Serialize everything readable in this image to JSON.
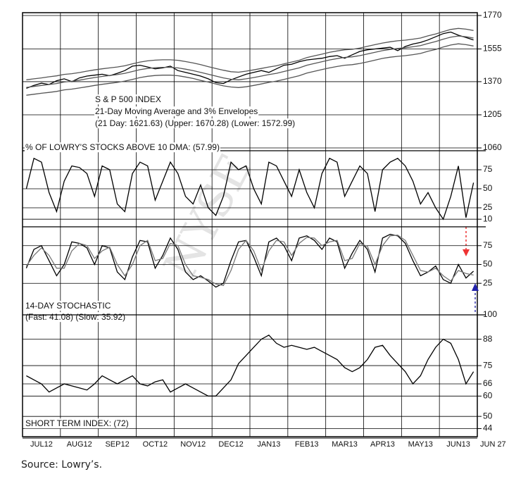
{
  "chart_data": [
    {
      "type": "line",
      "log": true,
      "title": "S & P 500 INDEX",
      "subtitle": "21-Day Moving Average and 3% Envelopes",
      "annotation": "(21 Day: 1621.63) (Upper: 1670.28) (Lower: 1572.99)",
      "ylim": [
        1060,
        1770
      ],
      "yticks": [
        1770,
        1555,
        1370,
        1205,
        1060
      ],
      "grid": true,
      "series": [
        {
          "name": "S&P 500",
          "color": "#000000",
          "values": [
            1335,
            1350,
            1362,
            1355,
            1375,
            1385,
            1370,
            1390,
            1400,
            1405,
            1410,
            1402,
            1415,
            1430,
            1455,
            1460,
            1450,
            1440,
            1445,
            1455,
            1430,
            1420,
            1410,
            1400,
            1385,
            1365,
            1360,
            1380,
            1395,
            1410,
            1420,
            1430,
            1420,
            1440,
            1460,
            1465,
            1480,
            1490,
            1495,
            1500,
            1510,
            1515,
            1500,
            1520,
            1540,
            1550,
            1555,
            1560,
            1565,
            1545,
            1570,
            1585,
            1595,
            1610,
            1630,
            1650,
            1660,
            1640,
            1625,
            1610
          ]
        },
        {
          "name": "21 Day",
          "color": "#555555",
          "values": [
            1340,
            1345,
            1350,
            1355,
            1360,
            1368,
            1372,
            1378,
            1385,
            1392,
            1398,
            1403,
            1408,
            1415,
            1425,
            1435,
            1442,
            1446,
            1448,
            1448,
            1445,
            1438,
            1430,
            1420,
            1410,
            1400,
            1390,
            1383,
            1380,
            1385,
            1392,
            1400,
            1408,
            1415,
            1425,
            1435,
            1445,
            1460,
            1470,
            1480,
            1490,
            1498,
            1505,
            1508,
            1515,
            1525,
            1535,
            1545,
            1552,
            1558,
            1562,
            1568,
            1575,
            1588,
            1600,
            1615,
            1628,
            1635,
            1630,
            1622
          ]
        },
        {
          "name": "Upper",
          "color": "#555555",
          "values": [
            1380,
            1385,
            1390,
            1396,
            1401,
            1409,
            1413,
            1419,
            1427,
            1434,
            1440,
            1445,
            1450,
            1457,
            1468,
            1478,
            1485,
            1489,
            1491,
            1491,
            1488,
            1481,
            1473,
            1463,
            1452,
            1442,
            1432,
            1424,
            1421,
            1427,
            1434,
            1442,
            1450,
            1457,
            1468,
            1478,
            1488,
            1504,
            1514,
            1524,
            1535,
            1543,
            1550,
            1553,
            1560,
            1571,
            1581,
            1591,
            1599,
            1605,
            1609,
            1615,
            1622,
            1636,
            1648,
            1663,
            1677,
            1684,
            1679,
            1670
          ]
        },
        {
          "name": "Lower",
          "color": "#555555",
          "values": [
            1300,
            1305,
            1310,
            1314,
            1319,
            1327,
            1331,
            1337,
            1343,
            1350,
            1356,
            1361,
            1366,
            1373,
            1382,
            1392,
            1399,
            1403,
            1405,
            1405,
            1402,
            1395,
            1387,
            1377,
            1368,
            1358,
            1348,
            1342,
            1339,
            1343,
            1350,
            1358,
            1366,
            1373,
            1382,
            1392,
            1402,
            1416,
            1426,
            1436,
            1445,
            1453,
            1460,
            1463,
            1470,
            1479,
            1489,
            1499,
            1506,
            1511,
            1515,
            1521,
            1528,
            1541,
            1552,
            1567,
            1579,
            1586,
            1581,
            1573
          ]
        }
      ]
    },
    {
      "type": "line",
      "title": "% OF LOWRY'S STOCKS ABOVE 10 DMA: (57.99)",
      "ylim": [
        0,
        100
      ],
      "yticks": [
        75,
        50,
        25,
        10
      ],
      "grid": true,
      "series": [
        {
          "name": "% above 10 DMA",
          "color": "#000000",
          "values": [
            50,
            90,
            85,
            45,
            20,
            60,
            80,
            78,
            70,
            40,
            80,
            75,
            30,
            20,
            70,
            85,
            80,
            35,
            60,
            85,
            70,
            40,
            30,
            55,
            25,
            15,
            40,
            85,
            75,
            80,
            50,
            30,
            85,
            80,
            60,
            40,
            75,
            45,
            25,
            70,
            90,
            85,
            40,
            60,
            80,
            70,
            20,
            75,
            85,
            90,
            80,
            60,
            30,
            45,
            25,
            10,
            40,
            80,
            12,
            57.99
          ]
        }
      ]
    },
    {
      "type": "line",
      "title": "14-DAY STOCHASTIC",
      "subtitle": "(Fast: 41.08) (Slow: 35.92)",
      "ylim": [
        -15,
        100
      ],
      "yticks": [
        75,
        50,
        25
      ],
      "grid": true,
      "series": [
        {
          "name": "Fast",
          "color": "#000000",
          "values": [
            45,
            70,
            75,
            55,
            35,
            50,
            80,
            78,
            72,
            50,
            75,
            72,
            40,
            30,
            60,
            82,
            80,
            45,
            62,
            85,
            70,
            40,
            30,
            35,
            28,
            20,
            25,
            55,
            80,
            82,
            60,
            35,
            80,
            85,
            75,
            55,
            85,
            88,
            82,
            70,
            85,
            80,
            45,
            65,
            82,
            70,
            40,
            85,
            90,
            88,
            78,
            55,
            35,
            40,
            48,
            30,
            25,
            50,
            32,
            41.08
          ]
        },
        {
          "name": "Slow",
          "color": "#777777",
          "values": [
            48,
            62,
            72,
            62,
            45,
            45,
            68,
            78,
            75,
            58,
            68,
            73,
            50,
            35,
            50,
            75,
            82,
            55,
            58,
            78,
            75,
            50,
            35,
            33,
            30,
            24,
            22,
            42,
            70,
            82,
            68,
            42,
            68,
            82,
            80,
            62,
            78,
            86,
            85,
            75,
            80,
            82,
            55,
            58,
            78,
            74,
            50,
            75,
            88,
            89,
            82,
            62,
            42,
            40,
            45,
            35,
            28,
            42,
            38,
            35.92
          ]
        }
      ]
    },
    {
      "type": "line",
      "title": "SHORT TERM INDEX: (72)",
      "ylim": [
        40,
        100
      ],
      "yticks": [
        100,
        88,
        75,
        66,
        60,
        50,
        44
      ],
      "grid": true,
      "series": [
        {
          "name": "Short Term Index",
          "color": "#000000",
          "values": [
            70,
            68,
            66,
            62,
            64,
            66,
            65,
            64,
            63,
            66,
            70,
            68,
            66,
            68,
            70,
            66,
            65,
            67,
            68,
            62,
            64,
            66,
            64,
            62,
            60,
            60,
            64,
            68,
            76,
            80,
            84,
            88,
            90,
            86,
            84,
            85,
            84,
            83,
            84,
            82,
            80,
            78,
            74,
            72,
            74,
            78,
            84,
            85,
            80,
            76,
            72,
            66,
            70,
            78,
            84,
            88,
            86,
            78,
            66,
            72
          ]
        }
      ]
    }
  ],
  "x_axis": {
    "categories": [
      "JUL12",
      "AUG12",
      "SEP12",
      "OCT12",
      "NOV12",
      "DEC12",
      "JAN13",
      "FEB13",
      "MAR13",
      "APR13",
      "MAY13",
      "JUN13"
    ],
    "end_label": "JUN 27"
  },
  "watermark": "NYSE",
  "source": "Source: Lowry’s."
}
